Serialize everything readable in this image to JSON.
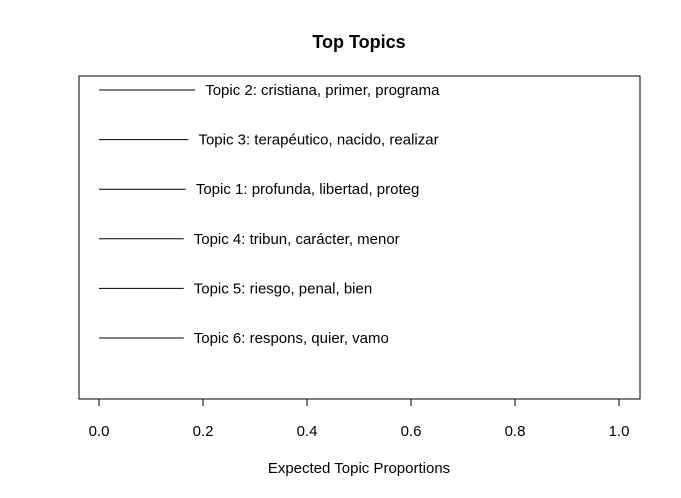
{
  "chart_data": {
    "type": "bar",
    "orientation": "horizontal",
    "title": "Top Topics",
    "xlabel": "Expected Topic Proportions",
    "ylabel": "",
    "xlim": [
      0,
      1.0
    ],
    "xticks": [
      "0.0",
      "0.2",
      "0.4",
      "0.6",
      "0.8",
      "1.0"
    ],
    "xtick_values": [
      0.0,
      0.2,
      0.4,
      0.6,
      0.8,
      1.0
    ],
    "grid": false,
    "categories": [
      "Topic 2: cristiana, primer, programa",
      "Topic 3: terapéutico, nacido, realizar",
      "Topic 1: profunda, libertad, proteg",
      "Topic 4: tribun, carácter, menor",
      "Topic 5: riesgo, penal, bien",
      "Topic 6: respons, quier, vamo"
    ],
    "values": [
      0.185,
      0.172,
      0.167,
      0.163,
      0.163,
      0.163
    ],
    "line_color": "#000000"
  }
}
